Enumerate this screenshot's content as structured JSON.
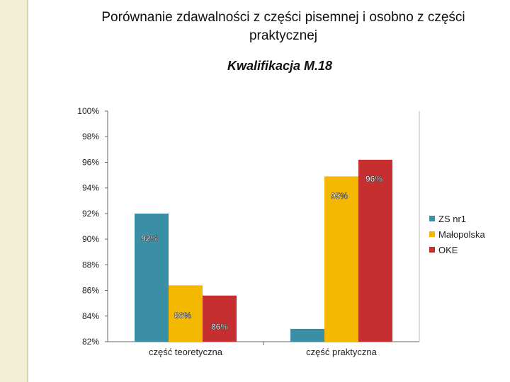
{
  "page": {
    "title": "Porównanie zdawalności z części pisemnej i osobno z części praktycznej",
    "subtitle": "Kwalifikacja M.18"
  },
  "chart_data": {
    "type": "bar",
    "categories": [
      "część teoretyczna",
      "część praktyczna"
    ],
    "series": [
      {
        "name": "ZS nr1",
        "color": "#3a8fa7",
        "values": [
          92,
          83
        ],
        "labels": [
          "92%",
          ""
        ]
      },
      {
        "name": "Małopolska",
        "color": "#f5b800",
        "values": [
          86.4,
          94.9
        ],
        "labels": [
          "86%",
          "95%"
        ]
      },
      {
        "name": "OKE",
        "color": "#c62f2f",
        "values": [
          85.6,
          96.2
        ],
        "labels": [
          "86%",
          "96%"
        ]
      }
    ],
    "ylim": [
      82,
      100
    ],
    "yticks": [
      "82%",
      "84%",
      "86%",
      "88%",
      "90%",
      "92%",
      "94%",
      "96%",
      "98%",
      "100%"
    ],
    "legend": "right",
    "grid": false
  }
}
